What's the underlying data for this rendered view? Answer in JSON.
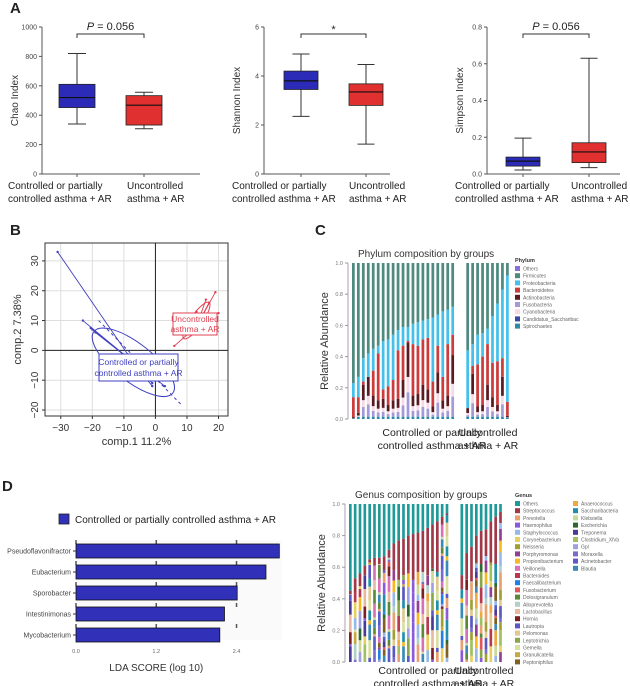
{
  "panels": {
    "a": "A",
    "b": "B",
    "c": "C",
    "d": "D"
  },
  "chart_data": [
    {
      "id": "chao",
      "type": "boxplot",
      "ylabel": "Chao Index",
      "ylim": [
        0,
        1000
      ],
      "yticks": [
        0,
        200,
        400,
        600,
        800,
        1000
      ],
      "annotation": "P = 0.056",
      "categories": [
        "Controlled or partially|controlled asthma + AR",
        "Uncontrolled|asthma + AR"
      ],
      "colors": [
        "#2b2bb8",
        "#e03030"
      ],
      "boxes": [
        {
          "min": 340,
          "q1": 452,
          "median": 520,
          "q3": 610,
          "max": 820
        },
        {
          "min": 308,
          "q1": 333,
          "median": 468,
          "q3": 533,
          "max": 556
        }
      ]
    },
    {
      "id": "shannon",
      "type": "boxplot",
      "ylabel": "Shannon Index",
      "ylim": [
        0,
        6
      ],
      "yticks": [
        0,
        2,
        4,
        6
      ],
      "annotation": "*",
      "categories": [
        "Controlled or partially|controlled asthma + AR",
        "Uncontrolled|asthma + AR"
      ],
      "colors": [
        "#2b2bb8",
        "#e03030"
      ],
      "boxes": [
        {
          "min": 2.35,
          "q1": 3.45,
          "median": 3.8,
          "q3": 4.2,
          "max": 4.9
        },
        {
          "min": 1.22,
          "q1": 2.8,
          "median": 3.35,
          "q3": 3.68,
          "max": 4.47
        }
      ]
    },
    {
      "id": "simpson",
      "type": "boxplot",
      "ylabel": "Simpson Index",
      "ylim": [
        0,
        0.8
      ],
      "yticks": [
        "0.0",
        "0.2",
        "0.4",
        "0.6",
        "0.8"
      ],
      "annotation": "P = 0.056",
      "categories": [
        "Controlled or partially|controlled asthma + AR",
        "Uncontrolled|asthma + AR"
      ],
      "colors": [
        "#2b2bb8",
        "#e03030"
      ],
      "boxes": [
        {
          "min": 0.022,
          "q1": 0.043,
          "median": 0.07,
          "q3": 0.092,
          "max": 0.195
        },
        {
          "min": 0.035,
          "q1": 0.062,
          "median": 0.12,
          "q3": 0.17,
          "max": 0.63
        }
      ]
    },
    {
      "id": "plsda",
      "type": "scatter",
      "xlabel": "comp.1 11.2%",
      "ylabel": "comp.2 7.38%",
      "xlim": [
        -35,
        23
      ],
      "ylim": [
        -22,
        36
      ],
      "xticks": [
        -30,
        -20,
        -10,
        0,
        10,
        20
      ],
      "yticks": [
        -20,
        -10,
        0,
        10,
        20,
        30
      ],
      "groups": [
        {
          "name": "Controlled or partially|controlled asthma + AR",
          "color": "#4040c0",
          "centroid": [
            -7,
            -4
          ],
          "points": [
            [
              -31,
              33
            ],
            [
              -23,
              10
            ],
            [
              -20.5,
              7.5
            ],
            [
              -20,
              7
            ],
            [
              -19,
              6
            ],
            [
              -10,
              -8.5
            ],
            [
              -6,
              -9.5
            ],
            [
              -3,
              -8
            ],
            [
              -1,
              -12
            ],
            [
              -1,
              -11
            ],
            [
              1,
              -10
            ],
            [
              2,
              -9
            ],
            [
              2.5,
              -8.5
            ],
            [
              3,
              -12
            ],
            [
              1.5,
              -9
            ],
            [
              -1.5,
              -7
            ],
            [
              -4,
              -6
            ],
            [
              -7,
              -5
            ],
            [
              -3,
              -4
            ],
            [
              0,
              -6
            ],
            [
              -2,
              -9.5
            ]
          ]
        },
        {
          "name": "Uncontrolled|asthma + AR",
          "color": "#e04050",
          "centroid": [
            13,
            8
          ],
          "points": [
            [
              19,
              19.5
            ],
            [
              20,
              12.5
            ],
            [
              6,
              1.5
            ],
            [
              10,
              6
            ],
            [
              11,
              6.5
            ],
            [
              16,
              17
            ],
            [
              13,
              13
            ],
            [
              14,
              9
            ],
            [
              17,
              16
            ]
          ]
        }
      ]
    },
    {
      "id": "phylum",
      "type": "stacked-bar",
      "title": "Phylum composition by groups",
      "ylabel": "Relative Abundance",
      "ylim": [
        0,
        1
      ],
      "yticks": [
        "0.0",
        "0.2",
        "0.4",
        "0.6",
        "0.8",
        "1.0"
      ],
      "legend_title": "Phylum",
      "legend": [
        "Others",
        "Firmicutes",
        "Proteobacteria",
        "Bacteroidetes",
        "Actinobacteria",
        "Fusobacteria",
        "Cyanobacteria",
        "Candidatus_Saccharibac",
        "Spirochaetes"
      ],
      "colors": [
        "#8a6fd8",
        "#4e8a80",
        "#45c0ea",
        "#cc3c3c",
        "#5a1a22",
        "#a59ad8",
        "#f7d8e6",
        "#3a4aa0",
        "#2a8aa8"
      ],
      "group_labels": [
        "Controlled or partially|controlled asthma + AR",
        "Uncontrolled|asthma + AR"
      ],
      "group_sizes": [
        21,
        9
      ],
      "firmicutes_top": [
        0.23,
        0.27,
        0.39,
        0.42,
        0.45,
        0.47,
        0.5,
        0.51,
        0.54,
        0.57,
        0.59,
        0.59,
        0.61,
        0.62,
        0.63,
        0.64,
        0.65,
        0.67,
        0.69,
        0.7,
        0.72,
        0.44,
        0.48,
        0.54,
        0.55,
        0.58,
        0.66,
        0.74,
        0.83,
        0.92
      ],
      "bacteroidetes_top": [
        0.14,
        0.14,
        0.24,
        0.27,
        0.31,
        0.42,
        0.19,
        0.21,
        0.25,
        0.44,
        0.47,
        0.5,
        0.48,
        0.47,
        0.51,
        0.52,
        0.24,
        0.47,
        0.27,
        0.48,
        0.54,
        0.07,
        0.34,
        0.35,
        0.4,
        0.48,
        0.36,
        0.37,
        0.39,
        0.11
      ],
      "actino_top": [
        0.01,
        0.04,
        0.22,
        0.27,
        0.15,
        0.12,
        0.13,
        0.09,
        0.12,
        0.13,
        0.25,
        0.49,
        0.15,
        0.16,
        0.22,
        0.19,
        0.08,
        0.3,
        0.12,
        0.15,
        0.41,
        0.07,
        0.29,
        0.08,
        0.09,
        0.22,
        0.14,
        0.09,
        0.27,
        0.02
      ]
    },
    {
      "id": "lefse",
      "type": "bar",
      "orientation": "horizontal",
      "legend": "Controlled or partially controlled asthma + AR",
      "color": "#3030b8",
      "xlabel": "LDA SCORE (log 10)",
      "xticks": [
        "0.0",
        "1.2",
        "2.4"
      ],
      "xlim": [
        0,
        3.05
      ],
      "categories": [
        "Pseudoflavonifractor",
        "Eubacterium",
        "Sporobacter",
        "Intestinimonas",
        "Mycobacterium"
      ],
      "values": [
        3.04,
        2.84,
        2.41,
        2.22,
        2.15
      ]
    },
    {
      "id": "genus",
      "type": "stacked-bar",
      "title": "Genus composition by groups",
      "ylabel": "Relative Abundance",
      "ylim": [
        0,
        1
      ],
      "yticks": [
        "0.0",
        "0.2",
        "0.4",
        "0.6",
        "0.8",
        "1.0"
      ],
      "legend_title": "Genus",
      "legend": [
        "Others",
        "Streptococcus",
        "Prevotella",
        "Haemophilus",
        "Staphylococcus",
        "Corynebacterium",
        "Neisseria",
        "Porphyromonas",
        "Propionibacterium",
        "Veillonella",
        "Bacteroides",
        "Faecalibacterium",
        "Fusobacterium",
        "Dolosigranulum",
        "Alloprevotella",
        "Lactobacillus",
        "Hornia",
        "Lautropia",
        "Pelomonas",
        "Leptotrichia",
        "Gemella",
        "Granulicatella",
        "Peptoniphilus",
        "Anaerococcus",
        "Saccharibacteria",
        "Klebsiella",
        "Escherichia",
        "Treponema",
        "Clostridium_XlVa",
        "Gpl",
        "Moraxella",
        "Acinetobacter",
        "Blautia"
      ],
      "colors": [
        "#1e9a98",
        "#a03848",
        "#e8a070",
        "#8a5ad8",
        "#98b8e8",
        "#e8d060",
        "#a0a030",
        "#904090",
        "#f8b820",
        "#d870b8",
        "#b83850",
        "#2080e8",
        "#e05858",
        "#5a8a38",
        "#b0d0c8",
        "#e8b8a0",
        "#7a2020",
        "#5858c0",
        "#e0c890",
        "#88a848",
        "#d8e0a0",
        "#c8a840",
        "#806020",
        "#f0a840",
        "#2090a8",
        "#c8d898",
        "#2a6a30",
        "#4a3a98",
        "#a0c060",
        "#a0a0e0",
        "#7a6ad0",
        "#5a5ac8",
        "#3a8ab8"
      ],
      "group_labels": [
        "Controlled or partially|controlled asthma + AR",
        "Uncontrolled|asthma + AR"
      ],
      "group_sizes": [
        21,
        9
      ],
      "others_bottom": [
        0.45,
        0.53,
        0.56,
        0.61,
        0.65,
        0.66,
        0.66,
        0.67,
        0.71,
        0.75,
        0.77,
        0.78,
        0.8,
        0.81,
        0.82,
        0.83,
        0.85,
        0.87,
        0.89,
        0.92,
        0.94,
        0.55,
        0.69,
        0.73,
        0.8,
        0.83,
        0.84,
        0.89,
        0.92,
        0.95
      ],
      "strep_bottom": [
        0.43,
        0.44,
        0.48,
        0.55,
        0.63,
        0.61,
        0.62,
        0.58,
        0.66,
        0.58,
        0.52,
        0.55,
        0.58,
        0.52,
        0.57,
        0.57,
        0.55,
        0.59,
        0.57,
        0.87,
        0.93,
        0.46,
        0.52,
        0.51,
        0.63,
        0.62,
        0.67,
        0.63,
        0.62,
        0.88
      ]
    }
  ]
}
